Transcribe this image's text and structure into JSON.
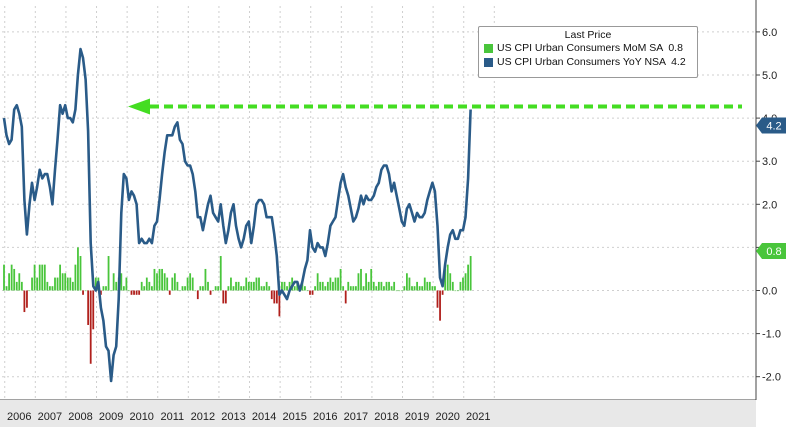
{
  "chart_data": {
    "type": "line",
    "legend": {
      "title": "Last Price",
      "placement": "top-right",
      "entries": [
        {
          "label": "US CPI Urban Consumers MoM SA",
          "value": "0.8",
          "color": "#49c53b"
        },
        {
          "label": "US CPI Urban Consumers YoY NSA",
          "value": "4.2",
          "color": "#2a5b88"
        }
      ]
    },
    "ylim": [
      -2.2,
      6.8
    ],
    "yticks": [
      "6.0",
      "5.0",
      "4.0",
      "3.0",
      "2.0",
      "1.0",
      "0.0",
      "-1.0",
      "-2.0"
    ],
    "ytick_values": [
      6,
      5,
      4,
      3,
      2,
      1,
      0,
      -1,
      -2
    ],
    "xticks": [
      "2006",
      "2007",
      "2008",
      "2009",
      "2010",
      "2011",
      "2012",
      "2013",
      "2014",
      "2015",
      "2016",
      "2017",
      "2018",
      "2019",
      "2020",
      "2021"
    ],
    "grid": true,
    "last_value_labels": [
      {
        "text": "4.2",
        "value": 4.2,
        "color": "#2a5b88"
      },
      {
        "text": "0.8",
        "value": 0.8,
        "color": "#49c53b"
      }
    ],
    "annotation": {
      "type": "dashed-arrow",
      "color": "#44dd22",
      "value": 4.2
    },
    "series": [
      {
        "name": "US CPI Urban Consumers YoY NSA",
        "type": "line",
        "color": "#2a5b88",
        "start": "2006-01",
        "values": [
          4.0,
          3.6,
          3.4,
          3.5,
          4.2,
          4.3,
          4.1,
          3.8,
          2.1,
          1.3,
          2.0,
          2.5,
          2.1,
          2.4,
          2.8,
          2.6,
          2.7,
          2.7,
          2.4,
          2.0,
          2.8,
          3.5,
          4.3,
          4.1,
          4.3,
          4.0,
          4.0,
          3.9,
          4.2,
          5.0,
          5.6,
          5.4,
          4.9,
          3.7,
          1.1,
          0.1,
          0.0,
          0.2,
          -0.4,
          -0.7,
          -1.3,
          -1.4,
          -2.1,
          -1.5,
          -1.3,
          -0.2,
          1.8,
          2.7,
          2.6,
          2.1,
          2.3,
          2.2,
          2.0,
          1.1,
          1.2,
          1.1,
          1.1,
          1.2,
          1.1,
          1.5,
          1.6,
          2.1,
          2.7,
          3.2,
          3.6,
          3.6,
          3.6,
          3.8,
          3.9,
          3.5,
          3.4,
          3.0,
          2.9,
          2.9,
          2.7,
          2.3,
          1.7,
          1.7,
          1.4,
          1.7,
          2.0,
          2.2,
          1.8,
          1.7,
          1.6,
          2.0,
          1.5,
          1.1,
          1.4,
          1.8,
          2.0,
          1.5,
          1.2,
          1.0,
          1.2,
          1.5,
          1.6,
          1.1,
          1.5,
          2.0,
          2.1,
          2.1,
          2.0,
          1.7,
          1.7,
          1.7,
          1.3,
          0.8,
          -0.1,
          0.0,
          -0.1,
          -0.2,
          0.0,
          0.1,
          0.2,
          0.2,
          0.0,
          0.2,
          0.5,
          0.7,
          1.4,
          1.0,
          0.9,
          1.1,
          1.0,
          1.0,
          0.8,
          1.1,
          1.5,
          1.6,
          1.7,
          2.1,
          2.5,
          2.7,
          2.4,
          2.2,
          1.9,
          1.6,
          1.7,
          1.9,
          2.2,
          2.0,
          2.2,
          2.1,
          2.1,
          2.2,
          2.4,
          2.5,
          2.8,
          2.9,
          2.9,
          2.7,
          2.3,
          2.5,
          2.2,
          1.9,
          1.6,
          1.5,
          1.9,
          2.0,
          1.8,
          1.6,
          1.8,
          1.7,
          1.7,
          1.8,
          2.1,
          2.3,
          2.5,
          2.3,
          1.5,
          0.3,
          0.1,
          0.6,
          1.0,
          1.3,
          1.4,
          1.2,
          1.2,
          1.4,
          1.4,
          1.7,
          2.6,
          4.2
        ]
      },
      {
        "name": "US CPI Urban Consumers MoM SA",
        "type": "bar",
        "color_positive": "#49c53b",
        "color_negative": "#b0201c",
        "start": "2006-01",
        "values": [
          0.6,
          0.1,
          0.4,
          0.6,
          0.5,
          0.2,
          0.4,
          0.2,
          -0.5,
          -0.4,
          0.0,
          0.3,
          0.6,
          0.3,
          0.6,
          0.6,
          0.6,
          0.2,
          0.1,
          0.1,
          0.3,
          0.3,
          0.6,
          0.4,
          0.4,
          0.3,
          0.3,
          0.2,
          0.6,
          1.0,
          0.8,
          -0.1,
          0.0,
          -0.8,
          -1.7,
          -0.9,
          0.3,
          0.3,
          -0.1,
          0.1,
          0.1,
          0.8,
          0.0,
          0.4,
          0.2,
          0.3,
          0.4,
          0.1,
          0.3,
          0.0,
          -0.1,
          -0.1,
          -0.1,
          -0.1,
          0.2,
          0.1,
          0.3,
          0.2,
          0.1,
          0.5,
          0.4,
          0.5,
          0.5,
          0.4,
          0.3,
          -0.1,
          0.3,
          0.4,
          0.2,
          0.0,
          0.1,
          0.1,
          0.3,
          0.4,
          0.3,
          0.0,
          -0.2,
          0.1,
          0.1,
          0.5,
          0.2,
          -0.1,
          0.0,
          0.1,
          0.1,
          0.8,
          -0.3,
          -0.3,
          0.1,
          0.3,
          0.1,
          0.2,
          0.2,
          0.1,
          0.1,
          0.3,
          0.2,
          0.2,
          0.2,
          0.3,
          0.3,
          0.1,
          0.1,
          0.2,
          0.1,
          -0.2,
          -0.3,
          -0.3,
          -0.6,
          0.2,
          0.2,
          0.1,
          0.2,
          0.3,
          0.1,
          0.2,
          0.0,
          0.2,
          0.1,
          0.0,
          -0.1,
          -0.1,
          0.1,
          0.4,
          0.2,
          0.2,
          0.1,
          0.2,
          0.3,
          0.2,
          0.3,
          0.3,
          0.5,
          0.1,
          -0.3,
          0.2,
          0.1,
          0.1,
          0.1,
          0.4,
          0.5,
          0.1,
          0.4,
          0.2,
          0.5,
          0.2,
          0.1,
          0.2,
          0.2,
          0.1,
          0.2,
          0.2,
          0.1,
          0.2,
          0.0,
          0.0,
          0.0,
          0.1,
          0.4,
          0.3,
          0.1,
          0.1,
          0.2,
          0.1,
          0.1,
          0.3,
          0.2,
          0.2,
          0.1,
          0.1,
          -0.4,
          -0.7,
          -0.1,
          0.5,
          0.6,
          0.4,
          0.2,
          0.0,
          0.0,
          0.2,
          0.3,
          0.4,
          0.6,
          0.8
        ]
      }
    ]
  }
}
